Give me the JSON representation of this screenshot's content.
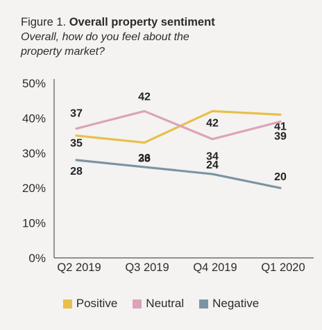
{
  "header": {
    "figure_label": "Figure 1. ",
    "title": "Overall property sentiment",
    "subtitle_line1": "Overall, how do you feel about the",
    "subtitle_line2": "property market?"
  },
  "chart_data": {
    "type": "line",
    "title": "Overall property sentiment",
    "subtitle": "Overall, how do you feel about the property market?",
    "categories": [
      "Q2 2019",
      "Q3 2019",
      "Q4 2019",
      "Q1 2020"
    ],
    "ylim": [
      0,
      50
    ],
    "yticks": [
      0,
      10,
      20,
      30,
      40,
      50
    ],
    "ytick_labels": [
      "0%",
      "10%",
      "20%",
      "30%",
      "40%",
      "50%"
    ],
    "grid": false,
    "legend_position": "bottom",
    "series": [
      {
        "name": "Positive",
        "color": "#e8bf4b",
        "values": [
          35,
          33,
          42,
          41
        ],
        "labels": [
          "35",
          "33",
          "42",
          "41"
        ]
      },
      {
        "name": "Neutral",
        "color": "#dda2b9",
        "values": [
          37,
          42,
          34,
          39
        ],
        "labels": [
          "37",
          "42",
          "34",
          "39"
        ]
      },
      {
        "name": "Negative",
        "color": "#7b94a3",
        "values": [
          28,
          26,
          24,
          20
        ],
        "labels": [
          "28",
          "26",
          "24",
          "20"
        ]
      }
    ]
  }
}
